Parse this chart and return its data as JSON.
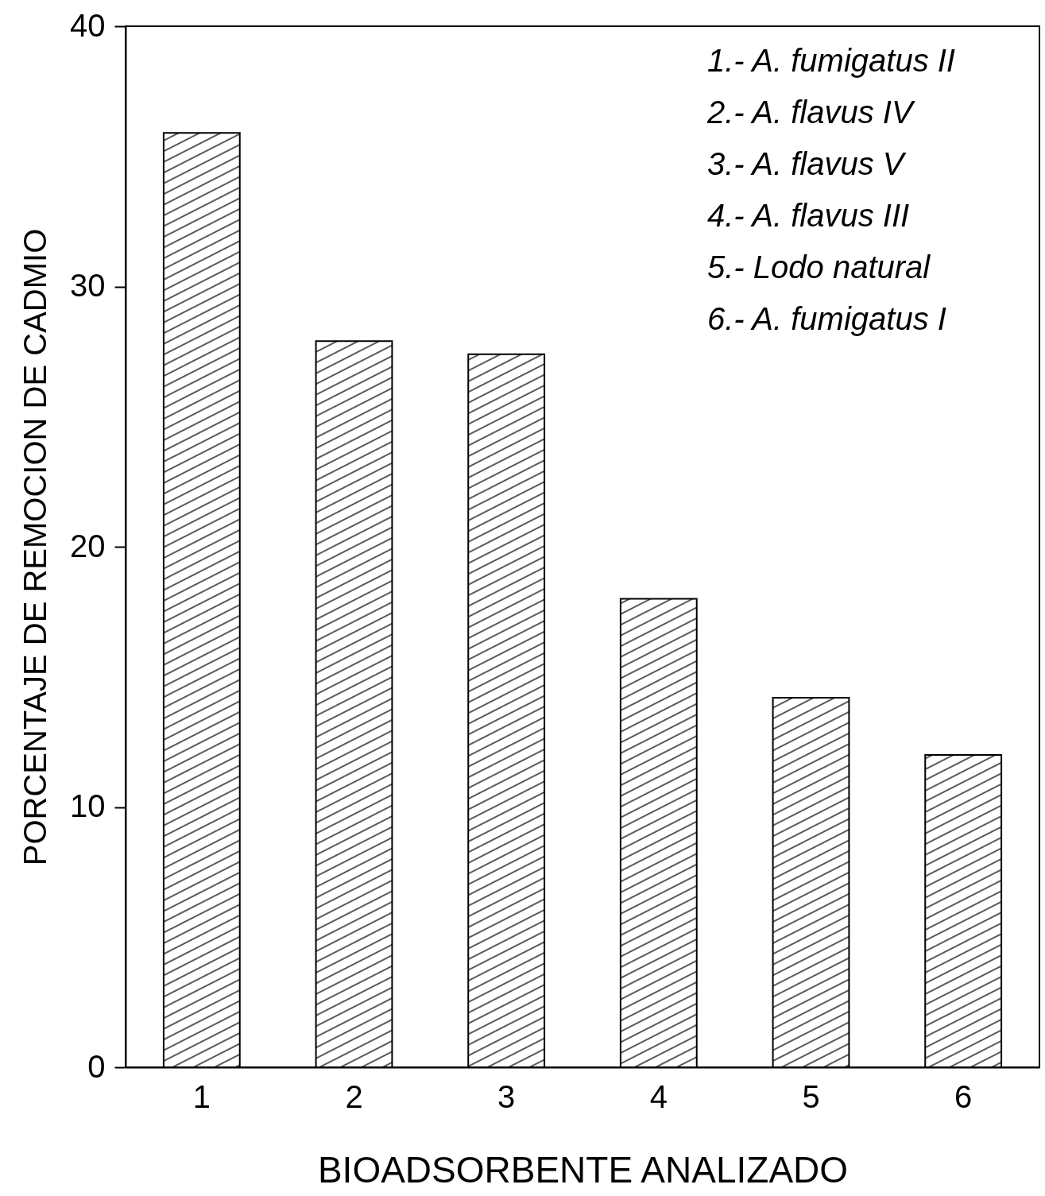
{
  "chart_data": {
    "type": "bar",
    "xlabel": "BIOADSORBENTE ANALIZADO",
    "ylabel": "PORCENTAJE DE REMOCION DE CADMIO",
    "categories": [
      "1",
      "2",
      "3",
      "4",
      "5",
      "6"
    ],
    "values": [
      35.9,
      27.9,
      27.4,
      18.0,
      14.2,
      12.0
    ],
    "color": "#000000",
    "ylim": [
      0,
      40
    ],
    "yticks": [
      0,
      10,
      20,
      30,
      40
    ],
    "grid": false,
    "annotations": [
      "1.- A. fumigatus II",
      "2.- A. flavus IV",
      "3.- A. flavus V",
      "4.- A. flavus III",
      "5.- Lodo natural",
      "6.- A. fumigatus I"
    ]
  }
}
